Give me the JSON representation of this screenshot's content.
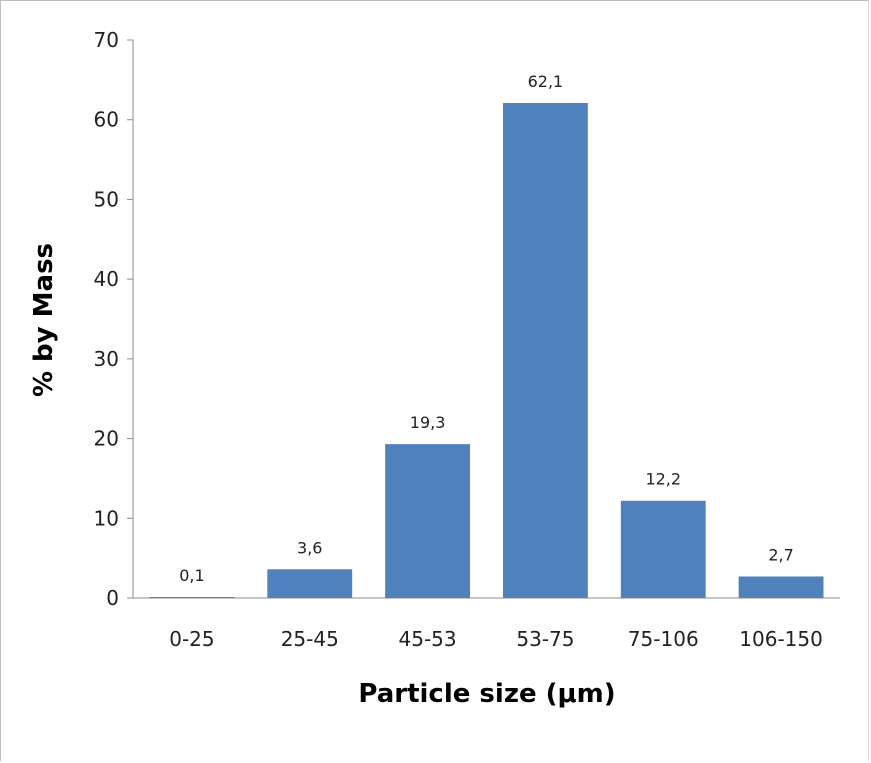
{
  "chart_data": {
    "type": "bar",
    "categories": [
      "0-25",
      "25-45",
      "45-53",
      "53-75",
      "75-106",
      "106-150"
    ],
    "values": [
      0.1,
      3.6,
      19.3,
      62.1,
      12.2,
      2.7
    ],
    "data_labels": [
      "0,1",
      "3,6",
      "19,3",
      "62,1",
      "12,2",
      "2,7"
    ],
    "xlabel": "Particle size (μm)",
    "ylabel": "% by Mass",
    "ylim": [
      0,
      70
    ],
    "yticks": [
      0,
      10,
      20,
      30,
      40,
      50,
      60,
      70
    ],
    "grid": false,
    "legend": "none",
    "bar_color": "#4f81bd"
  }
}
